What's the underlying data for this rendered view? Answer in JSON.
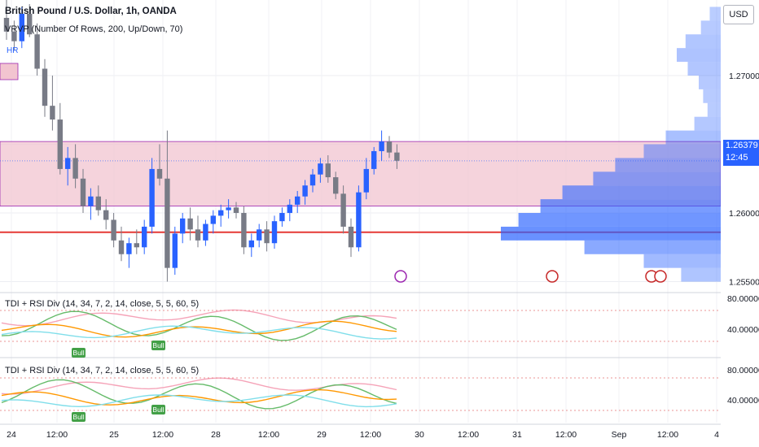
{
  "header": {
    "title": "British Pound / U.S. Dollar, 1h, OANDA",
    "vrvp": "VRVP (Number Of Rows, 200, Up/Down, 70)",
    "tdi1": "TDI + RSI Div (14, 34, 7, 2, 14, close, 5, 5, 60, 5)",
    "tdi2": "TDI + RSI Div (14, 34, 7, 2, 14, close, 5, 5, 60, 5)",
    "hr_label": "HR",
    "currency": "USD"
  },
  "price_tag": {
    "price": "1.26379",
    "countdown": "12:45",
    "color": "#2962ff"
  },
  "colors": {
    "up": "#2962ff",
    "down": "#787b86",
    "zone": "#f2c4d0",
    "support_line": "#e53935"
  },
  "chart_data": {
    "type": "candlestick",
    "y_axis": {
      "ticks": [
        "1.27000",
        "1.26500",
        "1.26000",
        "1.25500"
      ],
      "tick_values": [
        1.27,
        1.265,
        1.26,
        1.255
      ],
      "range": [
        1.2545,
        1.2755
      ]
    },
    "x_axis": {
      "labels": [
        "24",
        "12:00",
        "25",
        "12:00",
        "28",
        "12:00",
        "29",
        "12:00",
        "30",
        "12:00",
        "31",
        "12:00",
        "Sep",
        "12:00",
        "4"
      ]
    },
    "zone": {
      "top": 1.2652,
      "bottom": 1.2605
    },
    "support_price": 1.2586,
    "last_price": 1.26379,
    "candles": [
      [
        1.2742,
        1.2755,
        1.2726,
        1.2732
      ],
      [
        1.2732,
        1.274,
        1.2718,
        1.2725
      ],
      [
        1.2725,
        1.275,
        1.272,
        1.2745
      ],
      [
        1.2745,
        1.2752,
        1.2728,
        1.273
      ],
      [
        1.273,
        1.2738,
        1.27,
        1.2705
      ],
      [
        1.2705,
        1.2712,
        1.267,
        1.2678
      ],
      [
        1.2678,
        1.27,
        1.266,
        1.2668
      ],
      [
        1.2668,
        1.268,
        1.2628,
        1.2632
      ],
      [
        1.2632,
        1.2648,
        1.262,
        1.264
      ],
      [
        1.264,
        1.265,
        1.2618,
        1.2625
      ],
      [
        1.2625,
        1.2632,
        1.26,
        1.2605
      ],
      [
        1.2605,
        1.2618,
        1.2595,
        1.2612
      ],
      [
        1.2612,
        1.262,
        1.2598,
        1.2602
      ],
      [
        1.2602,
        1.261,
        1.2588,
        1.2595
      ],
      [
        1.2595,
        1.26,
        1.2575,
        1.258
      ],
      [
        1.258,
        1.259,
        1.2565,
        1.257
      ],
      [
        1.257,
        1.2582,
        1.256,
        1.2578
      ],
      [
        1.2578,
        1.2588,
        1.257,
        1.2575
      ],
      [
        1.2575,
        1.2595,
        1.257,
        1.259
      ],
      [
        1.259,
        1.264,
        1.2585,
        1.2632
      ],
      [
        1.2632,
        1.265,
        1.262,
        1.2625
      ],
      [
        1.2625,
        1.266,
        1.255,
        1.256
      ],
      [
        1.256,
        1.259,
        1.2555,
        1.2585
      ],
      [
        1.2585,
        1.26,
        1.2578,
        1.2596
      ],
      [
        1.2596,
        1.2604,
        1.258,
        1.2588
      ],
      [
        1.2588,
        1.2598,
        1.2575,
        1.258
      ],
      [
        1.258,
        1.2595,
        1.2576,
        1.2592
      ],
      [
        1.2592,
        1.2602,
        1.2585,
        1.2598
      ],
      [
        1.2598,
        1.2606,
        1.259,
        1.2602
      ],
      [
        1.2602,
        1.261,
        1.2596,
        1.2604
      ],
      [
        1.2604,
        1.2608,
        1.2596,
        1.26
      ],
      [
        1.26,
        1.2605,
        1.257,
        1.2575
      ],
      [
        1.2575,
        1.2585,
        1.2568,
        1.258
      ],
      [
        1.258,
        1.2592,
        1.2575,
        1.2588
      ],
      [
        1.2588,
        1.2594,
        1.2572,
        1.2578
      ],
      [
        1.2578,
        1.2598,
        1.2574,
        1.2594
      ],
      [
        1.2594,
        1.2604,
        1.259,
        1.26
      ],
      [
        1.26,
        1.261,
        1.2594,
        1.2606
      ],
      [
        1.2606,
        1.2616,
        1.26,
        1.2612
      ],
      [
        1.2612,
        1.2624,
        1.2606,
        1.262
      ],
      [
        1.262,
        1.2632,
        1.2615,
        1.2628
      ],
      [
        1.2628,
        1.264,
        1.2622,
        1.2636
      ],
      [
        1.2636,
        1.2642,
        1.2622,
        1.2626
      ],
      [
        1.2626,
        1.263,
        1.261,
        1.2614
      ],
      [
        1.2614,
        1.262,
        1.2585,
        1.259
      ],
      [
        1.259,
        1.2596,
        1.2568,
        1.2575
      ],
      [
        1.2575,
        1.262,
        1.2572,
        1.2615
      ],
      [
        1.2615,
        1.264,
        1.261,
        1.2632
      ],
      [
        1.2632,
        1.2648,
        1.2628,
        1.2645
      ],
      [
        1.2645,
        1.266,
        1.2638,
        1.2652
      ],
      [
        1.2652,
        1.2656,
        1.264,
        1.2644
      ],
      [
        1.2644,
        1.265,
        1.2632,
        1.2638
      ]
    ],
    "volume_profile": [
      [
        1.2745,
        0.05
      ],
      [
        1.2735,
        0.09
      ],
      [
        1.2725,
        0.16
      ],
      [
        1.2715,
        0.2
      ],
      [
        1.2705,
        0.15
      ],
      [
        1.2695,
        0.1
      ],
      [
        1.2685,
        0.08
      ],
      [
        1.2675,
        0.06
      ],
      [
        1.2665,
        0.12
      ],
      [
        1.2655,
        0.25
      ],
      [
        1.2645,
        0.35
      ],
      [
        1.2635,
        0.48
      ],
      [
        1.2625,
        0.58
      ],
      [
        1.2615,
        0.72
      ],
      [
        1.2605,
        0.82
      ],
      [
        1.2595,
        0.92
      ],
      [
        1.2585,
        1.0
      ],
      [
        1.2575,
        0.62
      ],
      [
        1.2565,
        0.35
      ],
      [
        1.2555,
        0.18
      ]
    ],
    "panels": [
      {
        "name": "TDI + RSI Div",
        "ticks": [
          "80.00000",
          "40.00000"
        ],
        "signal": "Bull"
      },
      {
        "name": "TDI + RSI Div",
        "ticks": [
          "80.00000",
          "40.00000"
        ],
        "signal": "Bull"
      }
    ]
  }
}
